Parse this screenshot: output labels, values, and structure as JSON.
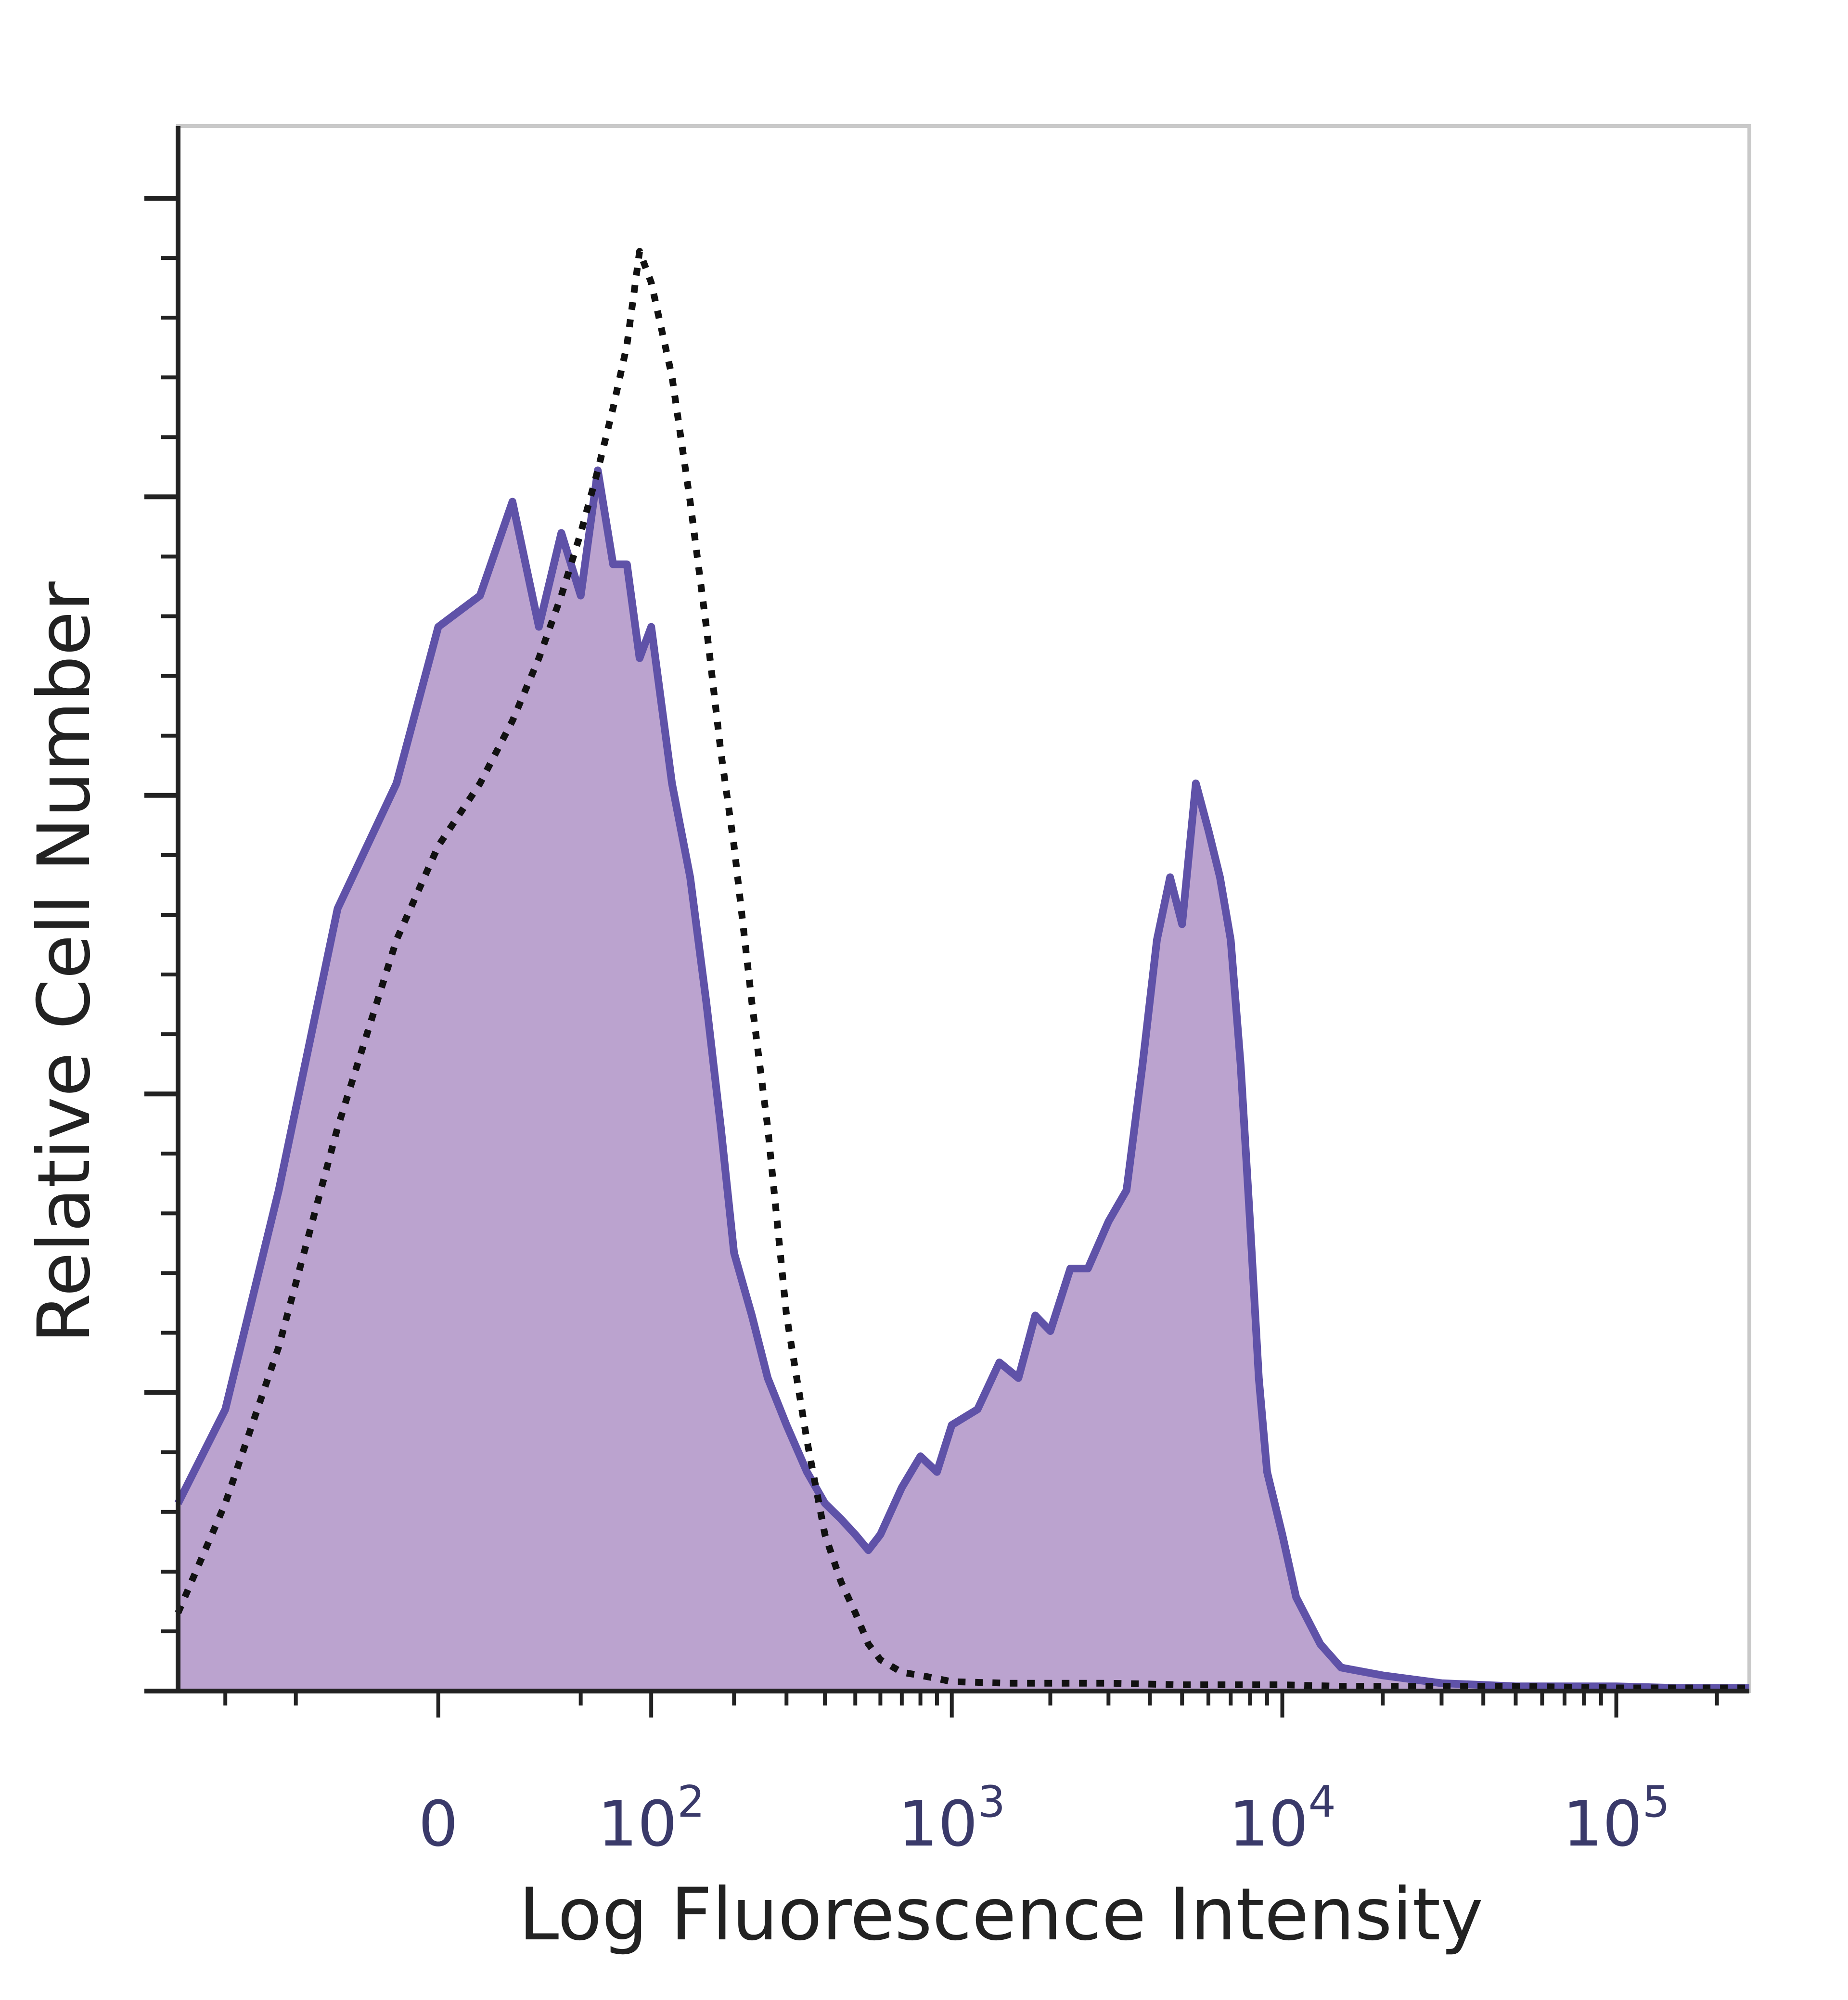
{
  "chart_data": {
    "type": "area",
    "xlabel": "Log Fluorescence Intensity",
    "ylabel": "Relative Cell Number",
    "x_scale": "biexponential",
    "x_tick_labels": [
      {
        "value": 0,
        "label": "0"
      },
      {
        "value": 100,
        "label": "10",
        "exp": "2"
      },
      {
        "value": 1000,
        "label": "10",
        "exp": "3"
      },
      {
        "value": 10000,
        "label": "10",
        "exp": "4"
      },
      {
        "value": 100000,
        "label": "10",
        "exp": "5"
      }
    ],
    "xlim": [
      -150,
      250000
    ],
    "ylim": [
      0,
      100
    ],
    "grid": false,
    "legend": "none",
    "series": [
      {
        "style": "filled",
        "x": [
          -150,
          -100,
          -60,
          -30,
          -10,
          0,
          10,
          20,
          30,
          40,
          50,
          60,
          70,
          80,
          90,
          100,
          120,
          140,
          160,
          180,
          200,
          230,
          260,
          300,
          350,
          400,
          450,
          500,
          550,
          600,
          700,
          800,
          900,
          1000,
          1200,
          1400,
          1600,
          1800,
          2000,
          2300,
          2600,
          3000,
          3400,
          3800,
          4200,
          4600,
          5000,
          5500,
          6000,
          6500,
          7000,
          7500,
          8000,
          8500,
          9000,
          10000,
          11000,
          13000,
          15000,
          20000,
          30000,
          50000,
          100000,
          150000,
          250000
        ],
        "values": [
          12,
          18,
          32,
          50,
          58,
          68,
          70,
          76,
          68,
          74,
          70,
          78,
          72,
          72,
          66,
          68,
          58,
          52,
          44,
          36,
          28,
          24,
          20,
          17,
          14,
          12,
          11,
          10,
          9,
          10,
          13,
          15,
          14,
          17,
          18,
          21,
          20,
          24,
          23,
          27,
          27,
          30,
          32,
          40,
          48,
          52,
          49,
          58,
          55,
          52,
          48,
          40,
          30,
          20,
          14,
          10,
          6,
          3,
          1.5,
          1,
          0.5,
          0.3,
          0.3,
          0.2,
          0.2
        ]
      },
      {
        "style": "dotted",
        "x": [
          -150,
          -100,
          -60,
          -30,
          -10,
          0,
          10,
          20,
          30,
          40,
          50,
          60,
          70,
          80,
          90,
          100,
          120,
          140,
          160,
          180,
          200,
          230,
          260,
          300,
          350,
          400,
          450,
          500,
          550,
          600,
          700,
          800,
          900,
          1000,
          1500,
          2000,
          3000,
          5000,
          7000,
          10000,
          15000,
          20000,
          50000,
          100000,
          250000
        ],
        "values": [
          5,
          12,
          22,
          36,
          48,
          54,
          58,
          62,
          66,
          70,
          74,
          78,
          82,
          86,
          92,
          90,
          84,
          76,
          68,
          60,
          54,
          44,
          36,
          24,
          16,
          10,
          7,
          5,
          3,
          2,
          1.2,
          1,
          0.8,
          0.6,
          0.5,
          0.5,
          0.5,
          0.4,
          0.4,
          0.4,
          0.3,
          0.3,
          0.3,
          0.2,
          0.2
        ]
      }
    ],
    "colors": {
      "fill": "#bba3cf",
      "filled_line": "#5f52a8",
      "dotted_line": "#111111",
      "frame": "#c9c9c9",
      "axis": "#222222"
    }
  }
}
